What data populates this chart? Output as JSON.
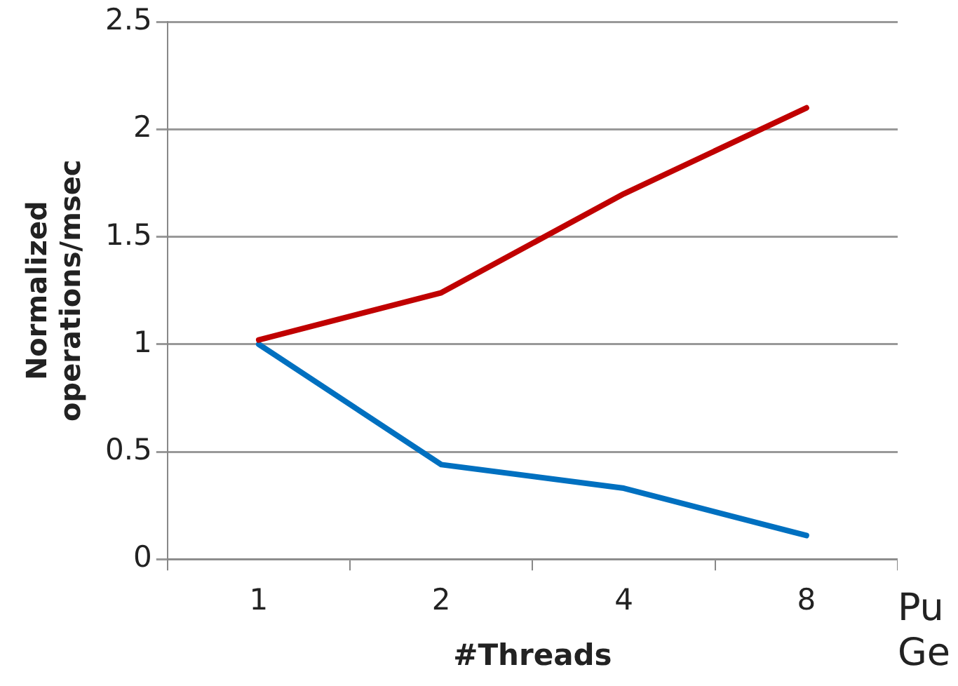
{
  "chart_data": {
    "type": "line",
    "xlabel": "#Threads",
    "ylabel": "Normalized operations/msec",
    "categories": [
      "1",
      "2",
      "4",
      "8"
    ],
    "series": [
      {
        "color": "#c00000",
        "values": [
          1.02,
          1.24,
          1.7,
          2.1
        ]
      },
      {
        "color": "#0070c0",
        "values": [
          1.0,
          0.44,
          0.33,
          0.11
        ]
      }
    ],
    "ylim": [
      0,
      2.5
    ],
    "yticks": [
      0,
      0.5,
      1,
      1.5,
      2,
      2.5
    ],
    "grid": "y",
    "legend": false,
    "marker": "none",
    "line_style": "solid",
    "annotations": [
      "Pu",
      "Ge"
    ]
  }
}
